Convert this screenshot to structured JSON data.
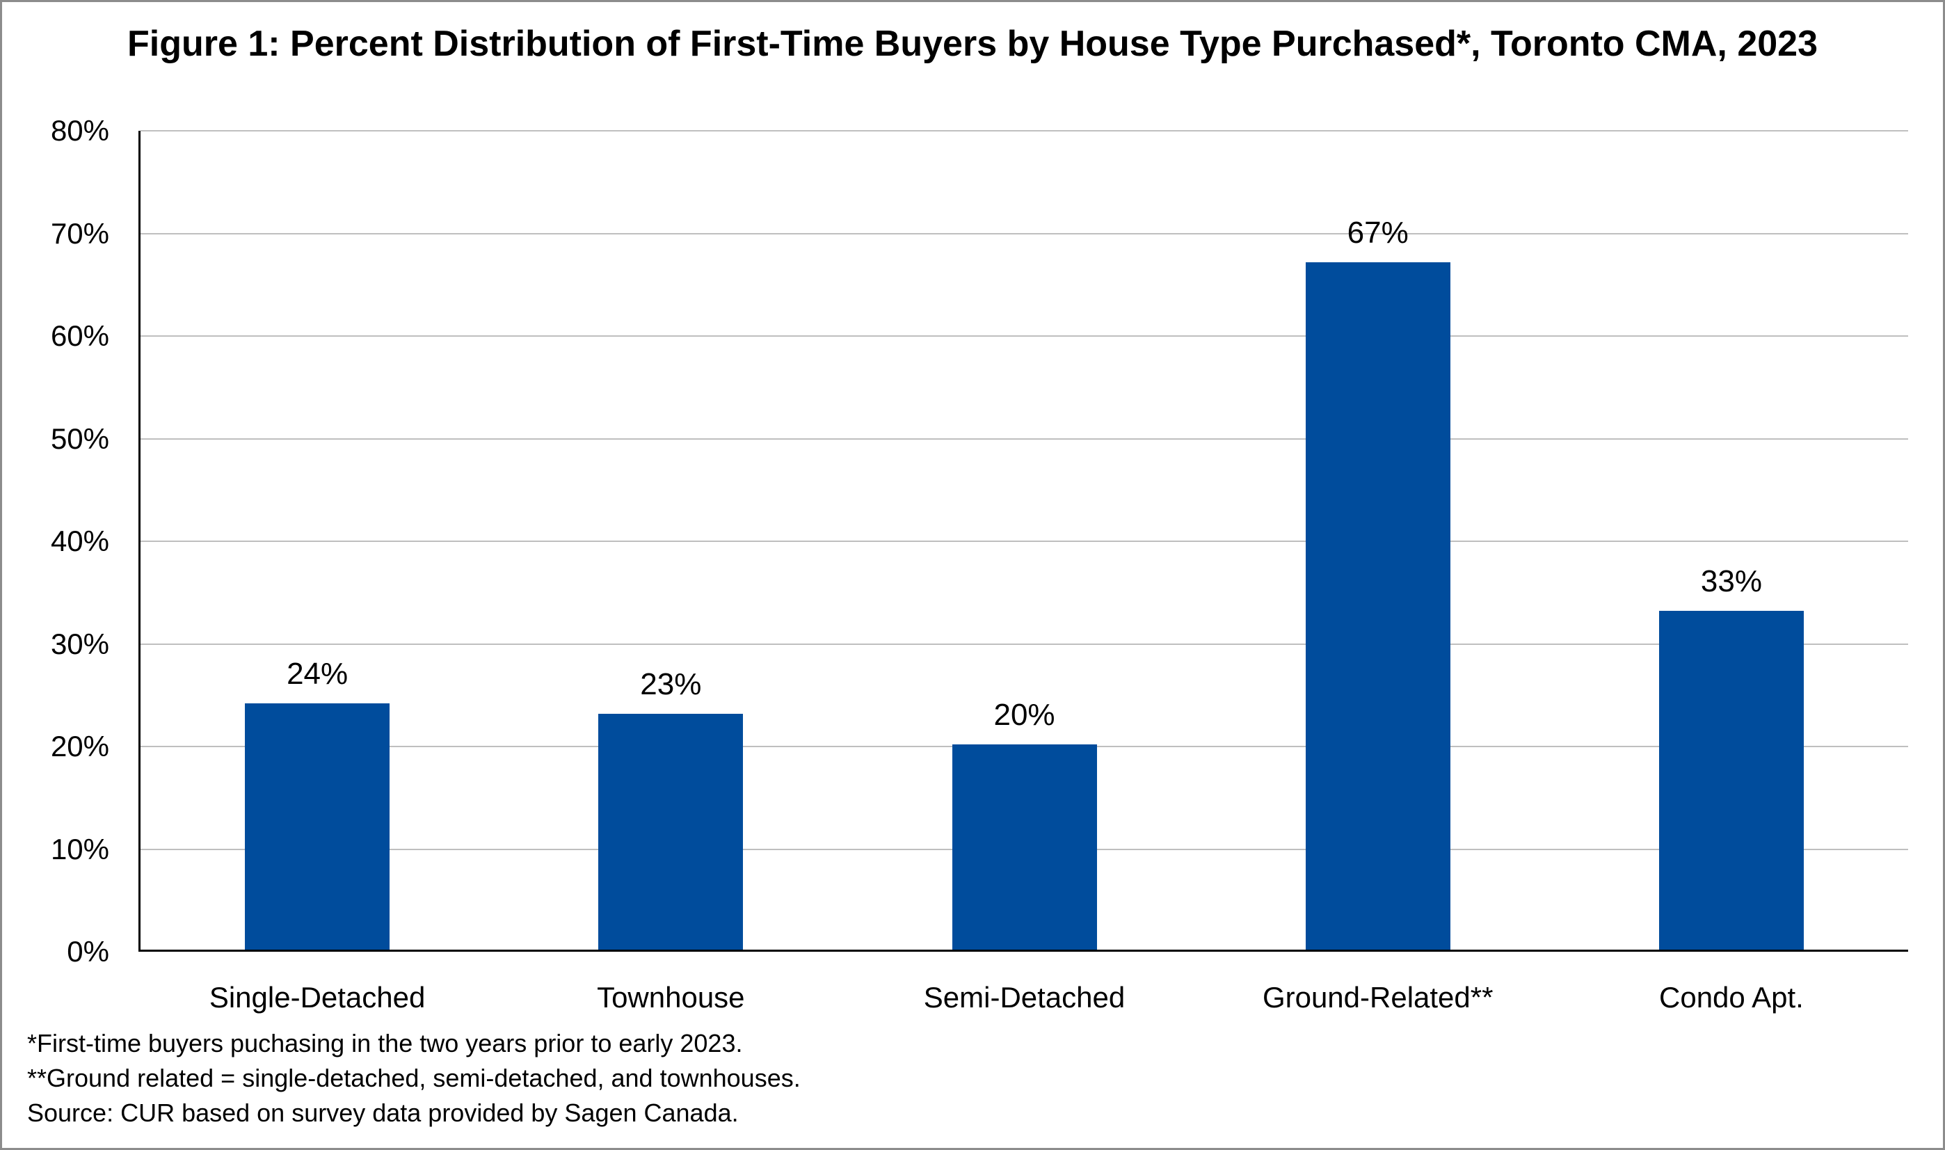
{
  "figure": {
    "title": "Figure 1: Percent Distribution of First-Time Buyers by House Type Purchased*, Toronto CMA, 2023",
    "footnotes": [
      "*First-time buyers puchasing in the two years prior to early 2023.",
      "**Ground related = single-detached, semi-detached, and townhouses.",
      "Source: CUR based on survey data provided by Sagen Canada."
    ]
  },
  "chart_data": {
    "type": "bar",
    "title": "Figure 1: Percent Distribution of First-Time Buyers by House Type Purchased*, Toronto CMA, 2023",
    "categories": [
      "Single-Detached",
      "Townhouse",
      "Semi-Detached",
      "Ground-Related**",
      "Condo Apt."
    ],
    "values": [
      24,
      23,
      20,
      67,
      33
    ],
    "value_labels": [
      "24%",
      "23%",
      "20%",
      "67%",
      "33%"
    ],
    "xlabel": "",
    "ylabel": "",
    "ylim": [
      0,
      80
    ],
    "ytick_interval": 10,
    "ytick_labels": [
      "0%",
      "10%",
      "20%",
      "30%",
      "40%",
      "50%",
      "60%",
      "70%",
      "80%"
    ],
    "grid": true,
    "legend": "none",
    "colors": {
      "bar": "#004C9C",
      "gridline": "#BFBFBF",
      "axis": "#000000",
      "text": "#000000",
      "background": "#FFFFFF",
      "frame_border": "#8C8C8C"
    }
  }
}
